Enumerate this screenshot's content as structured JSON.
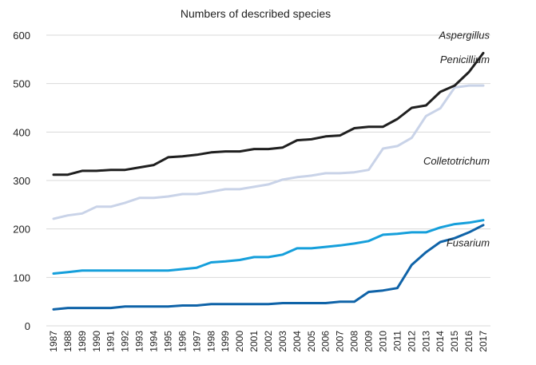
{
  "chart_data": {
    "type": "line",
    "title": "Numbers of described species",
    "xlabel": "",
    "ylabel": "",
    "ylim": [
      0,
      600
    ],
    "yticks": [
      0,
      100,
      200,
      300,
      400,
      500,
      600
    ],
    "grid": true,
    "legend": "inline labels at line ends",
    "x": [
      "1987",
      "1988",
      "1989",
      "1990",
      "1991",
      "1992",
      "1993",
      "1994",
      "1995",
      "1996",
      "1997",
      "1998",
      "1999",
      "2000",
      "2001",
      "2002",
      "2003",
      "2004",
      "2005",
      "2006",
      "2007",
      "2008",
      "2009",
      "2010",
      "2011",
      "2012",
      "2013",
      "2014",
      "2015",
      "2016",
      "2017"
    ],
    "series": [
      {
        "name": "Aspergillus",
        "color": "#1f1f1f",
        "values": [
          312,
          312,
          320,
          320,
          322,
          322,
          327,
          332,
          348,
          350,
          353,
          358,
          360,
          360,
          365,
          365,
          368,
          383,
          385,
          391,
          393,
          408,
          411,
          411,
          427,
          450,
          455,
          483,
          496,
          524,
          563
        ]
      },
      {
        "name": "Penicillium",
        "color": "#c9d3e8",
        "values": [
          221,
          228,
          232,
          246,
          246,
          254,
          264,
          264,
          267,
          272,
          272,
          277,
          282,
          282,
          287,
          292,
          302,
          307,
          310,
          315,
          315,
          317,
          322,
          366,
          371,
          388,
          433,
          449,
          492,
          496,
          496
        ]
      },
      {
        "name": "Fusarium",
        "color": "#159fdb",
        "values": [
          108,
          111,
          114,
          114,
          114,
          114,
          114,
          114,
          114,
          117,
          120,
          131,
          133,
          136,
          142,
          142,
          147,
          160,
          160,
          163,
          166,
          170,
          175,
          188,
          190,
          193,
          193,
          203,
          210,
          213,
          218
        ]
      },
      {
        "name": "Colletotrichum",
        "color": "#0f63a8",
        "values": [
          34,
          37,
          37,
          37,
          37,
          40,
          40,
          40,
          40,
          42,
          42,
          45,
          45,
          45,
          45,
          45,
          47,
          47,
          47,
          47,
          50,
          50,
          70,
          73,
          78,
          126,
          152,
          173,
          181,
          193,
          208
        ]
      }
    ]
  }
}
